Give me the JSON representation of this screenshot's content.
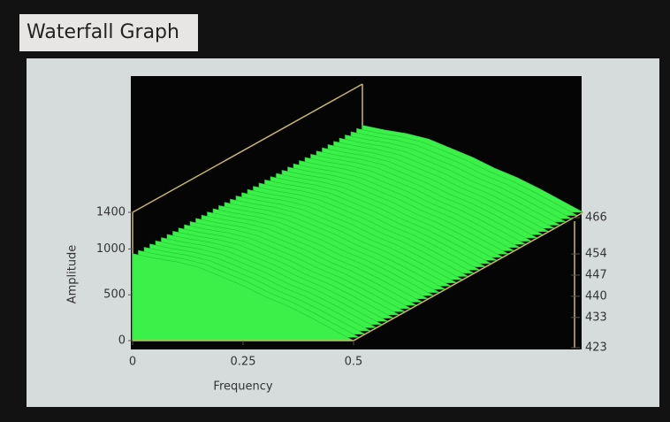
{
  "chart_data": {
    "type": "waterfall",
    "title": "Waterfall Graph",
    "xlabel": "Frequency",
    "ylabel": "Amplitude",
    "x": [
      0,
      0.05,
      0.1,
      0.15,
      0.2,
      0.25,
      0.3,
      0.35,
      0.4,
      0.45,
      0.5
    ],
    "values": [
      950,
      900,
      860,
      800,
      700,
      600,
      480,
      380,
      260,
      130,
      0
    ],
    "color": "#3cf04a",
    "xlim": [
      0,
      0.5
    ],
    "xticks": [
      0,
      0.25,
      0.5
    ],
    "ylim": [
      0,
      1400
    ],
    "yticks": [
      0,
      500,
      1000,
      1400
    ],
    "zlim": [
      423,
      466
    ],
    "zticks": [
      423,
      433,
      440,
      447,
      454,
      466
    ]
  }
}
